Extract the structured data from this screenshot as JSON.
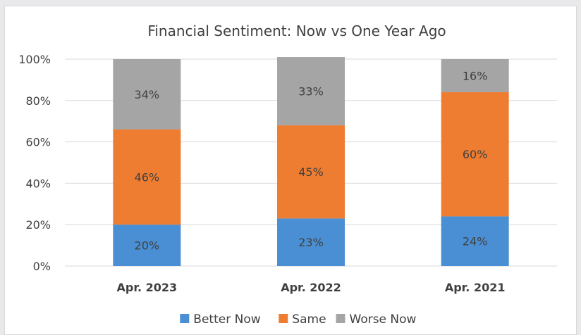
{
  "chart_data": {
    "type": "bar",
    "stacked": true,
    "title": "Financial Sentiment: Now vs One Year Ago",
    "categories": [
      "Apr. 2023",
      "Apr. 2022",
      "Apr. 2021"
    ],
    "series": [
      {
        "name": "Better Now",
        "values": [
          20,
          23,
          24
        ],
        "labels": [
          "20%",
          "23%",
          "24%"
        ],
        "color": "#4a8fd4"
      },
      {
        "name": "Same",
        "values": [
          46,
          45,
          60
        ],
        "labels": [
          "46%",
          "45%",
          "60%"
        ],
        "color": "#ef7d31"
      },
      {
        "name": "Worse Now",
        "values": [
          34,
          33,
          16
        ],
        "labels": [
          "34%",
          "33%",
          "16%"
        ],
        "color": "#a5a5a5"
      }
    ],
    "ylim": [
      0,
      100
    ],
    "yticks": [
      0,
      20,
      40,
      60,
      80,
      100
    ],
    "ytick_labels": [
      "0%",
      "20%",
      "40%",
      "60%",
      "80%",
      "100%"
    ],
    "grid": true,
    "legend": "bottom",
    "xlabel": "",
    "ylabel": ""
  }
}
